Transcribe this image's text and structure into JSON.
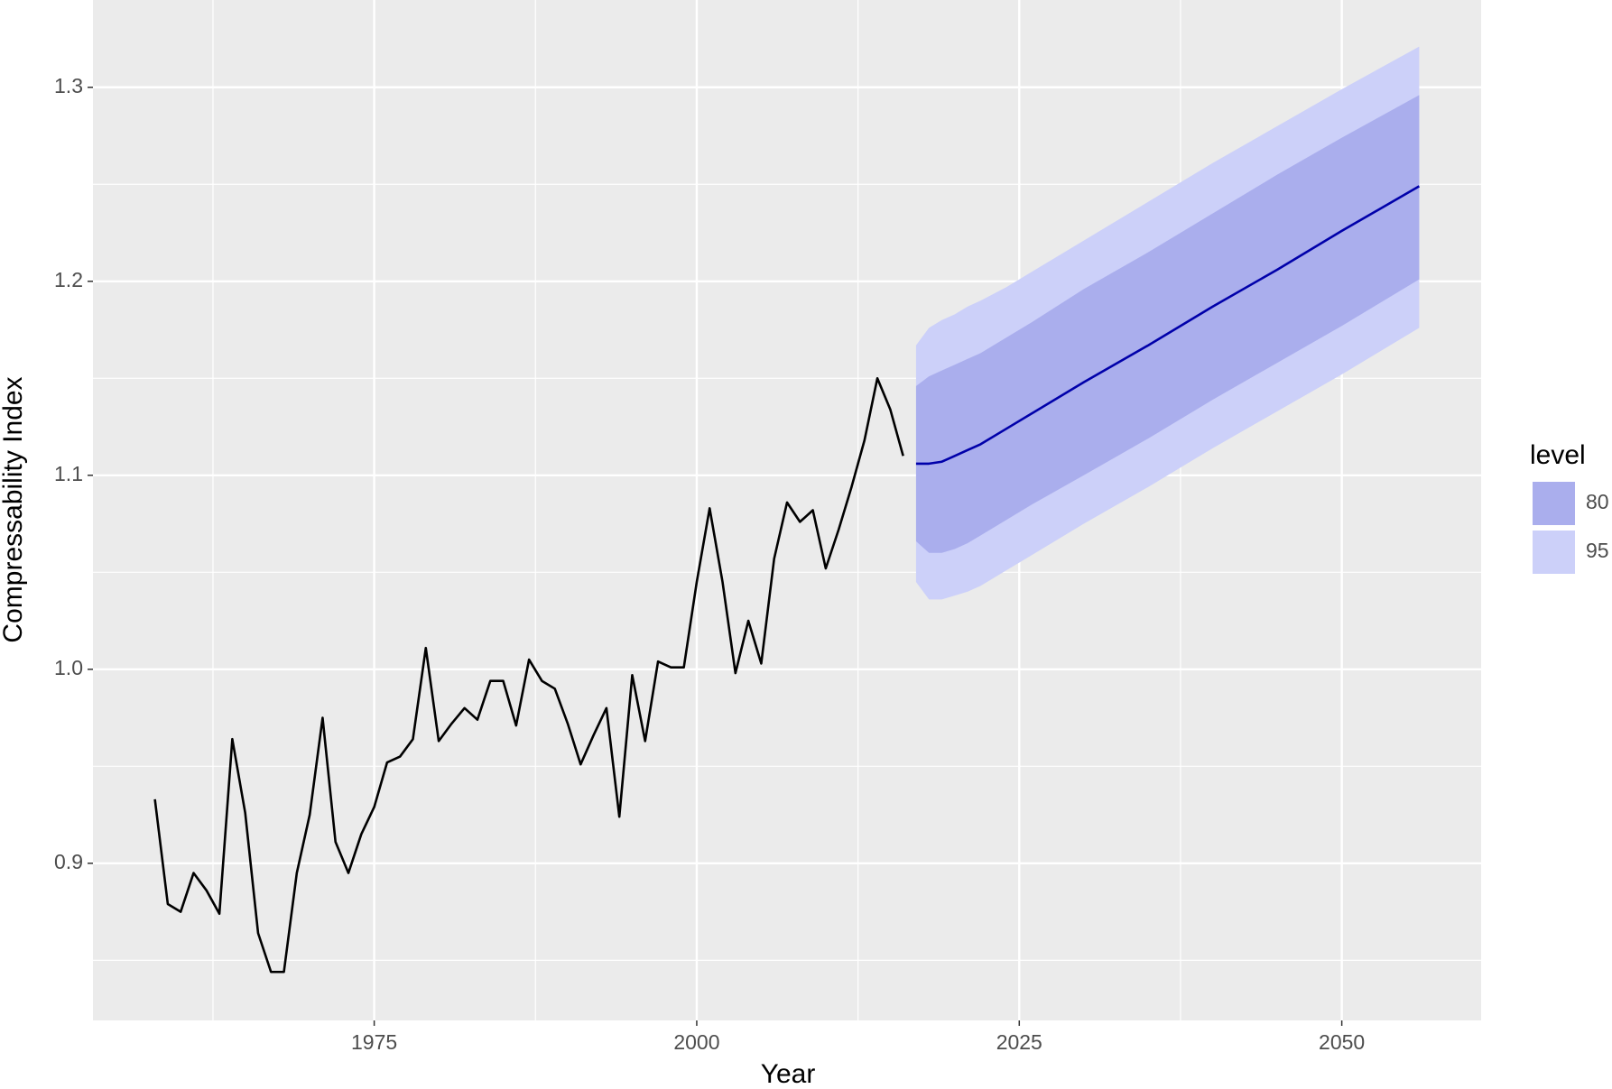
{
  "chart_data": {
    "type": "forecast",
    "xlabel": "Year",
    "ylabel": "Compressability Index",
    "legend_title": "level",
    "legend": "right",
    "grid": true,
    "xlim": [
      1953.2,
      2060.8
    ],
    "ylim": [
      0.819,
      1.345
    ],
    "xticks": [
      1975,
      2000,
      2025,
      2050
    ],
    "yticks": [
      0.9,
      {
        "value": 1,
        "label": "1.0"
      },
      1.1,
      1.2,
      1.3
    ],
    "x_minor_ticks": [
      1962.5,
      1987.5,
      2012.5,
      2037.5
    ],
    "y_minor_ticks": [
      0.85,
      0.95,
      1.05,
      1.15,
      1.25
    ],
    "history": {
      "color": "#000000",
      "x": [
        1958,
        1959,
        1960,
        1961,
        1962,
        1963,
        1964,
        1965,
        1966,
        1967,
        1968,
        1969,
        1970,
        1971,
        1972,
        1973,
        1974,
        1975,
        1976,
        1977,
        1978,
        1979,
        1980,
        1981,
        1982,
        1983,
        1984,
        1985,
        1986,
        1987,
        1988,
        1989,
        1990,
        1991,
        1992,
        1993,
        1994,
        1995,
        1996,
        1997,
        1998,
        1999,
        2000,
        2001,
        2002,
        2003,
        2004,
        2005,
        2006,
        2007,
        2008,
        2009,
        2010,
        2011,
        2012,
        2013,
        2014,
        2015,
        2016
      ],
      "values": [
        0.933,
        0.879,
        0.875,
        0.895,
        0.886,
        0.874,
        0.964,
        0.926,
        0.864,
        0.844,
        0.844,
        0.895,
        0.925,
        0.975,
        0.911,
        0.895,
        0.915,
        0.929,
        0.952,
        0.955,
        0.964,
        1.011,
        0.963,
        0.972,
        0.98,
        0.974,
        0.994,
        0.994,
        0.971,
        1.005,
        0.994,
        0.99,
        0.972,
        0.951,
        0.966,
        0.98,
        0.924,
        0.997,
        0.963,
        1.004,
        1.001,
        1.001,
        1.045,
        1.083,
        1.045,
        0.998,
        1.025,
        1.003,
        1.057,
        1.086,
        1.076,
        1.082,
        1.052,
        1.072,
        1.094,
        1.118,
        1.15,
        1.134,
        1.11
      ]
    },
    "forecast": {
      "color": "#0000aa",
      "x": [
        2017,
        2018,
        2019,
        2020,
        2021,
        2022,
        2024,
        2026,
        2030,
        2035,
        2040,
        2045,
        2050,
        2056
      ],
      "mean": [
        1.106,
        1.106,
        1.107,
        1.11,
        1.113,
        1.116,
        1.124,
        1.132,
        1.148,
        1.167,
        1.187,
        1.206,
        1.226,
        1.249
      ]
    },
    "bands": [
      {
        "name": "80",
        "color": "#aaaeed",
        "upper": [
          1.146,
          1.151,
          1.154,
          1.157,
          1.16,
          1.163,
          1.171,
          1.179,
          1.196,
          1.215,
          1.235,
          1.255,
          1.274,
          1.296
        ],
        "lower": [
          1.066,
          1.06,
          1.06,
          1.062,
          1.065,
          1.069,
          1.077,
          1.085,
          1.1,
          1.119,
          1.139,
          1.158,
          1.177,
          1.201
        ]
      },
      {
        "name": "95",
        "color": "#ccd0f9",
        "upper": [
          1.167,
          1.176,
          1.18,
          1.183,
          1.187,
          1.19,
          1.197,
          1.205,
          1.221,
          1.241,
          1.261,
          1.28,
          1.299,
          1.321
        ],
        "lower": [
          1.045,
          1.036,
          1.036,
          1.038,
          1.04,
          1.043,
          1.051,
          1.059,
          1.075,
          1.094,
          1.114,
          1.133,
          1.152,
          1.176
        ]
      }
    ]
  }
}
